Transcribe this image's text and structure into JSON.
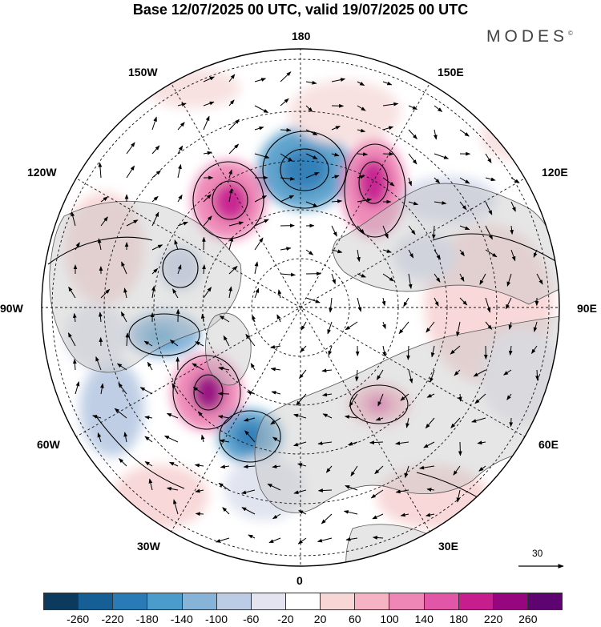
{
  "title": "Base 12/07/2025 00 UTC, valid 19/07/2025 00 UTC",
  "brand": "MODES",
  "brand_mark": "©",
  "longitude_labels": {
    "lon180": "180",
    "lon150w": "150W",
    "lon150e": "150E",
    "lon120w": "120W",
    "lon120e": "120E",
    "lon90w": "90W",
    "lon90e": "90E",
    "lon60w": "60W",
    "lon60e": "60E",
    "lon30w": "30W",
    "lon30e": "30E",
    "lon0": "0"
  },
  "wind_scale": {
    "value": "30"
  },
  "colorbar": {
    "colors": [
      "#0b3a5c",
      "#165f94",
      "#2a7ab6",
      "#4b9ccb",
      "#87b3d8",
      "#bccce4",
      "#e4e4f0",
      "#ffffff",
      "#f8d6d6",
      "#f5b3c4",
      "#ee86b6",
      "#e156a6",
      "#c71e8e",
      "#96077f",
      "#5e0470"
    ],
    "labels": [
      "-260",
      "-220",
      "-180",
      "-140",
      "-100",
      "-60",
      "-20",
      "20",
      "60",
      "100",
      "140",
      "180",
      "220",
      "260"
    ]
  }
}
